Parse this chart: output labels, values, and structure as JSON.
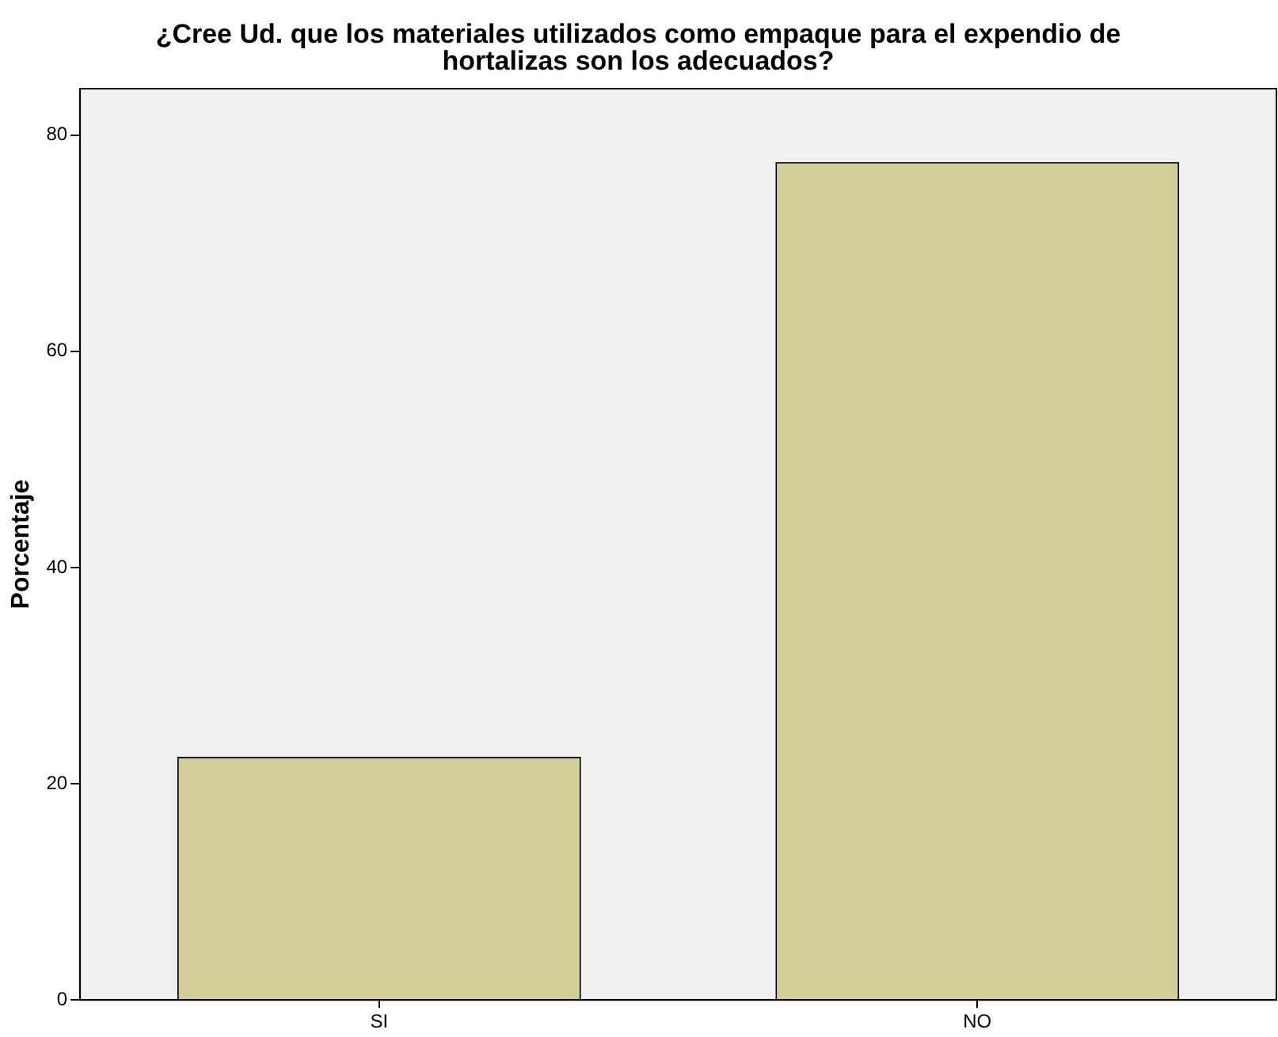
{
  "chart_data": {
    "type": "bar",
    "title": "¿Cree Ud. que los materiales utilizados como empaque para el expendio de\nhortalizas son los adecuados?",
    "ylabel": "Porcentaje",
    "categories": [
      "SI",
      "NO"
    ],
    "values": [
      22.5,
      77.5
    ],
    "color": "#d3ce97",
    "ylim": [
      0,
      84.3
    ],
    "yticks": [
      0,
      20,
      40,
      60,
      80
    ],
    "grid": false,
    "legend": false
  }
}
